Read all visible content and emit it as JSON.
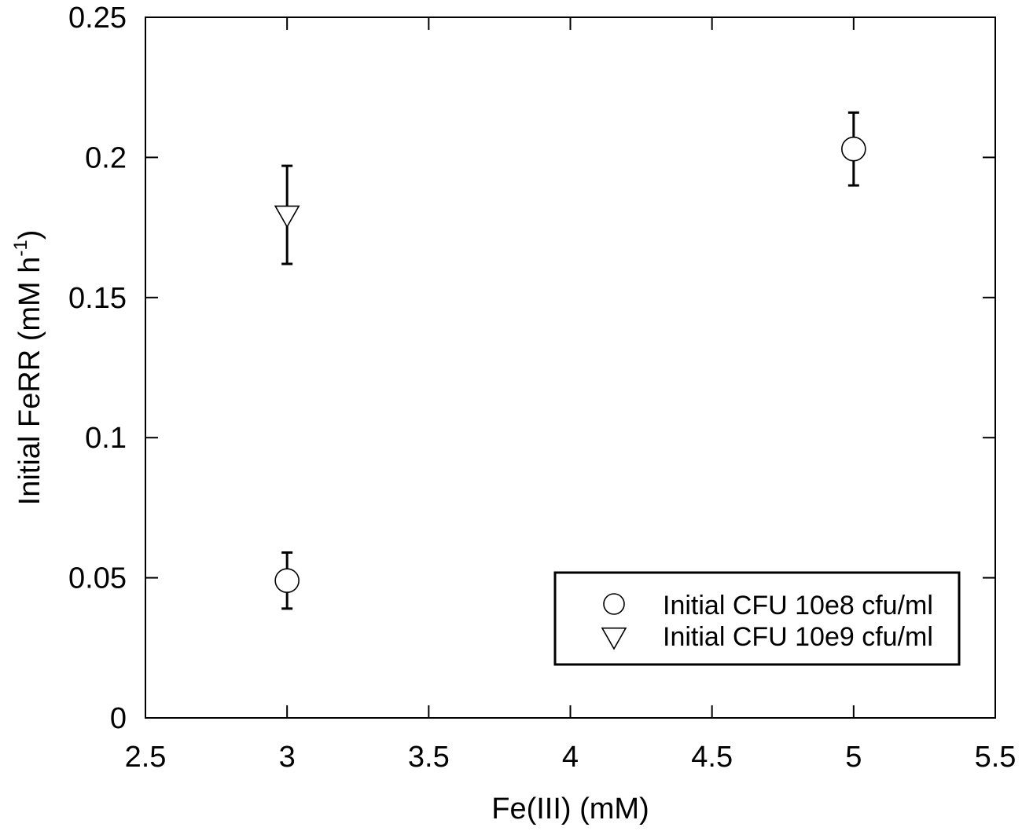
{
  "chart_data": {
    "type": "scatter",
    "xlabel": "Fe(III) (mM)",
    "ylabel": "Initial FeRR (mM h",
    "ylabel_sup": "-1",
    "ylabel_close": ")",
    "xlim": [
      2.5,
      5.5
    ],
    "ylim": [
      0,
      0.25
    ],
    "x_ticks": [
      2.5,
      3,
      3.5,
      4,
      4.5,
      5,
      5.5
    ],
    "x_tick_labels": [
      "2.5",
      "3",
      "3.5",
      "4",
      "4.5",
      "5",
      "5.5"
    ],
    "y_ticks": [
      0,
      0.05,
      0.1,
      0.15,
      0.2,
      0.25
    ],
    "y_tick_labels": [
      "0",
      "0.05",
      "0.1",
      "0.15",
      "0.2",
      "0.25"
    ],
    "grid": false,
    "legend_position": "bottom-right",
    "series": [
      {
        "name": "Initial CFU 10e8 cfu/ml",
        "marker": "circle",
        "points": [
          {
            "x": 3,
            "y": 0.049,
            "err_low": 0.039,
            "err_high": 0.059
          },
          {
            "x": 5,
            "y": 0.203,
            "err_low": 0.19,
            "err_high": 0.216
          }
        ]
      },
      {
        "name": "Initial CFU 10e9 cfu/ml",
        "marker": "triangle-down",
        "points": [
          {
            "x": 3,
            "y": 0.18,
            "err_low": 0.162,
            "err_high": 0.197
          }
        ]
      }
    ]
  }
}
